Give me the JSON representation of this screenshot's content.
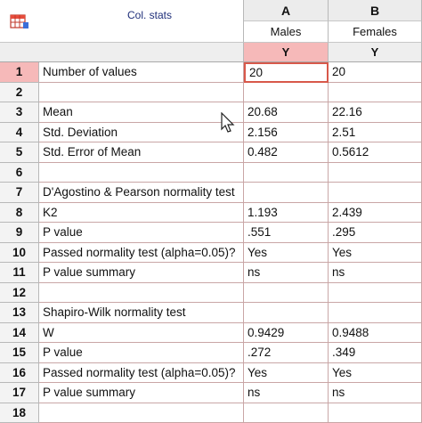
{
  "table": {
    "title": "Col. stats",
    "columns": [
      {
        "letter": "A",
        "name": "Males",
        "sub": "Y"
      },
      {
        "letter": "B",
        "name": "Females",
        "sub": "Y"
      }
    ],
    "rows": [
      {
        "num": "1",
        "label": "Number of values",
        "a": "20",
        "b": "20"
      },
      {
        "num": "2",
        "label": "",
        "a": "",
        "b": ""
      },
      {
        "num": "3",
        "label": "Mean",
        "a": "20.68",
        "b": "22.16"
      },
      {
        "num": "4",
        "label": "Std. Deviation",
        "a": "2.156",
        "b": "2.51"
      },
      {
        "num": "5",
        "label": "Std. Error of Mean",
        "a": "0.482",
        "b": "0.5612"
      },
      {
        "num": "6",
        "label": "",
        "a": "",
        "b": ""
      },
      {
        "num": "7",
        "label": "D'Agostino & Pearson normality test",
        "a": "",
        "b": ""
      },
      {
        "num": "8",
        "label": "K2",
        "a": "1.193",
        "b": "2.439"
      },
      {
        "num": "9",
        "label": "P value",
        "a": ".551",
        "b": ".295"
      },
      {
        "num": "10",
        "label": "Passed normality test (alpha=0.05)?",
        "a": "Yes",
        "b": "Yes"
      },
      {
        "num": "11",
        "label": "P value summary",
        "a": "ns",
        "b": "ns"
      },
      {
        "num": "12",
        "label": "",
        "a": "",
        "b": ""
      },
      {
        "num": "13",
        "label": "Shapiro-Wilk normality test",
        "a": "",
        "b": ""
      },
      {
        "num": "14",
        "label": "W",
        "a": "0.9429",
        "b": "0.9488"
      },
      {
        "num": "15",
        "label": "P value",
        "a": ".272",
        "b": ".349"
      },
      {
        "num": "16",
        "label": "Passed normality test (alpha=0.05)?",
        "a": "Yes",
        "b": "Yes"
      },
      {
        "num": "17",
        "label": "P value summary",
        "a": "ns",
        "b": "ns"
      },
      {
        "num": "18",
        "label": "",
        "a": "",
        "b": ""
      }
    ]
  },
  "colors": {
    "selection": "#f6b9b9",
    "selection_border": "#d8584a",
    "grid": "#c9a6a6",
    "title_text": "#1f2f7a"
  },
  "icons": {
    "app": "results-table-icon",
    "sort": "sort-triangle-icon",
    "cursor": "mouse-cursor-icon"
  }
}
